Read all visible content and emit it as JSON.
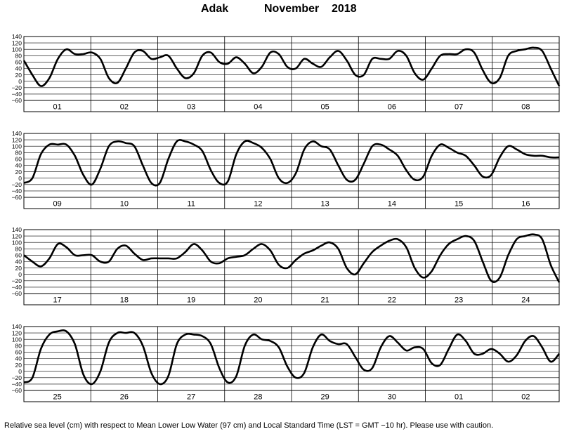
{
  "header": {
    "station": "Adak",
    "month": "November",
    "year": "2018"
  },
  "footnote": "Relative sea level (cm) with respect to Mean Lower Low Water (97 cm) and Local Standard Time (LST = GMT −10 hr). Please use with caution.",
  "colors": {
    "line": "#000000",
    "grid": "#000000",
    "background": "#ffffff"
  },
  "chart_data": {
    "type": "line",
    "ylim": [
      -60,
      140
    ],
    "yticks": [
      "140",
      "120",
      "100",
      "80",
      "60",
      "40",
      "20",
      "0",
      "−20",
      "−40",
      "−60"
    ],
    "grid": true,
    "x_unit": "day",
    "panels": [
      {
        "days": [
          "01",
          "02",
          "03",
          "04",
          "05",
          "06",
          "07",
          "08"
        ],
        "y": [
          65,
          20,
          -15,
          10,
          70,
          100,
          85,
          85,
          90,
          70,
          10,
          -5,
          40,
          90,
          95,
          70,
          75,
          80,
          40,
          10,
          25,
          80,
          90,
          60,
          55,
          75,
          55,
          25,
          45,
          90,
          85,
          45,
          40,
          70,
          55,
          45,
          75,
          95,
          65,
          20,
          20,
          70,
          70,
          70,
          95,
          80,
          25,
          5,
          40,
          80,
          85,
          85,
          100,
          90,
          35,
          -5,
          10,
          80,
          95,
          100,
          105,
          95,
          40,
          -15
        ]
      },
      {
        "days": [
          "09",
          "10",
          "11",
          "12",
          "13",
          "14",
          "15",
          "16"
        ],
        "y": [
          -15,
          0,
          75,
          105,
          105,
          105,
          70,
          10,
          -20,
          30,
          100,
          115,
          110,
          100,
          40,
          -15,
          -15,
          60,
          115,
          115,
          105,
          85,
          25,
          -15,
          -10,
          75,
          115,
          110,
          95,
          60,
          0,
          -15,
          15,
          90,
          115,
          100,
          90,
          40,
          -5,
          -5,
          45,
          100,
          105,
          90,
          70,
          25,
          -5,
          5,
          70,
          105,
          95,
          80,
          70,
          40,
          5,
          10,
          65,
          100,
          90,
          75,
          70,
          70,
          65,
          65
        ]
      },
      {
        "days": [
          "17",
          "18",
          "19",
          "20",
          "21",
          "22",
          "23",
          "24"
        ],
        "y": [
          60,
          40,
          25,
          50,
          95,
          85,
          60,
          60,
          60,
          40,
          40,
          80,
          90,
          65,
          45,
          50,
          50,
          50,
          50,
          70,
          95,
          75,
          40,
          35,
          50,
          55,
          60,
          80,
          95,
          75,
          30,
          20,
          45,
          65,
          75,
          90,
          100,
          80,
          20,
          0,
          35,
          70,
          90,
          105,
          110,
          85,
          20,
          -10,
          10,
          60,
          95,
          110,
          120,
          105,
          40,
          -20,
          -10,
          60,
          110,
          120,
          125,
          110,
          30,
          -25
        ]
      },
      {
        "days": [
          "25",
          "26",
          "27",
          "28",
          "29",
          "30",
          "01",
          "02"
        ],
        "y": [
          -35,
          -20,
          70,
          115,
          125,
          125,
          85,
          -10,
          -40,
          0,
          90,
          120,
          120,
          120,
          80,
          -5,
          -40,
          -15,
          85,
          115,
          115,
          110,
          85,
          10,
          -35,
          -15,
          80,
          115,
          100,
          95,
          75,
          15,
          -20,
          -5,
          75,
          115,
          95,
          85,
          85,
          45,
          5,
          10,
          75,
          110,
          90,
          65,
          75,
          70,
          25,
          20,
          70,
          115,
          95,
          55,
          55,
          70,
          55,
          30,
          50,
          95,
          110,
          75,
          30,
          55
        ]
      }
    ]
  }
}
